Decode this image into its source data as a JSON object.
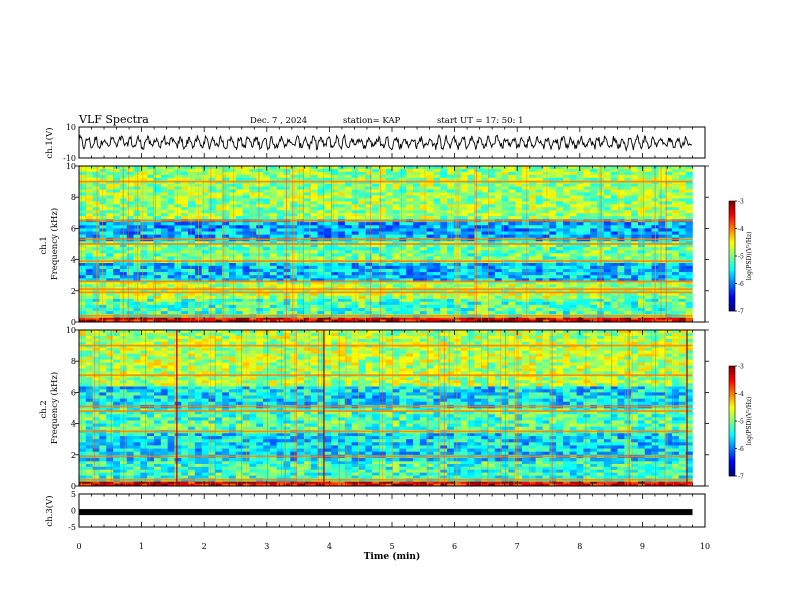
{
  "header": {
    "title": "VLF Spectra",
    "date": "Dec. 7 , 2024",
    "station": "station= KAP",
    "start": "start  UT =   17: 50: 1"
  },
  "chart_data": [
    {
      "type": "line",
      "id": "ch1-waveform",
      "ylabel": "ch.1(V)",
      "ylim": [
        -10,
        10
      ],
      "yticks": [
        {
          "v": 10,
          "t": "10"
        },
        {
          "v": -10,
          "t": "-10"
        }
      ],
      "xlim": [
        0,
        10
      ],
      "data_extent_min": 9.8,
      "series": [
        {
          "color": "#000000",
          "amplitude": 5
        }
      ]
    },
    {
      "type": "heatmap",
      "id": "ch1-spectrogram",
      "ylabel": "ch.1\nFrequency (kHz)",
      "ylim": [
        0,
        10
      ],
      "xlim": [
        0,
        10
      ],
      "yticks": [
        "0",
        "2",
        "4",
        "6",
        "8",
        "10"
      ],
      "data_extent_min": 9.8,
      "colorbar": {
        "label": "log(PSD)(V²/Hz)",
        "range": [
          -7,
          -3
        ],
        "ticks": [
          "-3",
          "-4",
          "-5",
          "-6",
          "-7"
        ]
      },
      "bands": [
        {
          "f0": 0.0,
          "f1": 0.3,
          "level": -3.4
        },
        {
          "f0": 0.3,
          "f1": 1.5,
          "level": -5.2
        },
        {
          "f0": 1.5,
          "f1": 2.6,
          "level": -4.8
        },
        {
          "f0": 2.6,
          "f1": 3.8,
          "level": -5.7
        },
        {
          "f0": 3.8,
          "f1": 5.2,
          "level": -5.1
        },
        {
          "f0": 5.2,
          "f1": 6.6,
          "level": -5.8
        },
        {
          "f0": 6.6,
          "f1": 10.0,
          "level": -4.9
        }
      ],
      "lines_khz": [
        0.4,
        1.9,
        2.1,
        2.6,
        3.9,
        5.0,
        5.3,
        6.5,
        9.0
      ]
    },
    {
      "type": "heatmap",
      "id": "ch2-spectrogram",
      "ylabel": "ch.2\nFrequency (kHz)",
      "ylim": [
        0,
        10
      ],
      "xlim": [
        0,
        10
      ],
      "yticks": [
        "0",
        "2",
        "4",
        "6",
        "8",
        "10"
      ],
      "data_extent_min": 9.8,
      "colorbar": {
        "label": "log(PSD)(V²/Hz)",
        "range": [
          -7,
          -3
        ],
        "ticks": [
          "-3",
          "-4",
          "-5",
          "-6",
          "-7"
        ]
      },
      "bands": [
        {
          "f0": 0.0,
          "f1": 0.3,
          "level": -3.4
        },
        {
          "f0": 0.3,
          "f1": 1.6,
          "level": -5.3
        },
        {
          "f0": 1.6,
          "f1": 3.4,
          "level": -5.6
        },
        {
          "f0": 3.4,
          "f1": 5.0,
          "level": -5.2
        },
        {
          "f0": 5.0,
          "f1": 6.4,
          "level": -5.6
        },
        {
          "f0": 6.4,
          "f1": 10.0,
          "level": -4.8
        }
      ],
      "lines_khz": [
        0.4,
        1.9,
        3.5,
        4.8,
        5.1,
        7.1,
        9.0
      ],
      "bursts_min": [
        1.55,
        3.9,
        9.7
      ]
    },
    {
      "type": "line",
      "id": "ch3-level",
      "ylabel": "ch.3(V)",
      "ylim": [
        -5,
        5
      ],
      "yticks": [
        {
          "v": 5,
          "t": "5"
        },
        {
          "v": 0,
          "t": "0"
        },
        {
          "v": -5,
          "t": "-5"
        }
      ],
      "xlim": [
        0,
        10
      ],
      "xlabel": "Time (min)",
      "xticks": [
        "0",
        "1",
        "2",
        "3",
        "4",
        "5",
        "6",
        "7",
        "8",
        "9",
        "10"
      ],
      "data_extent_min": 9.8,
      "series": [
        {
          "color": "#000000",
          "values": [
            -0.5,
            -0.5
          ]
        }
      ]
    }
  ]
}
